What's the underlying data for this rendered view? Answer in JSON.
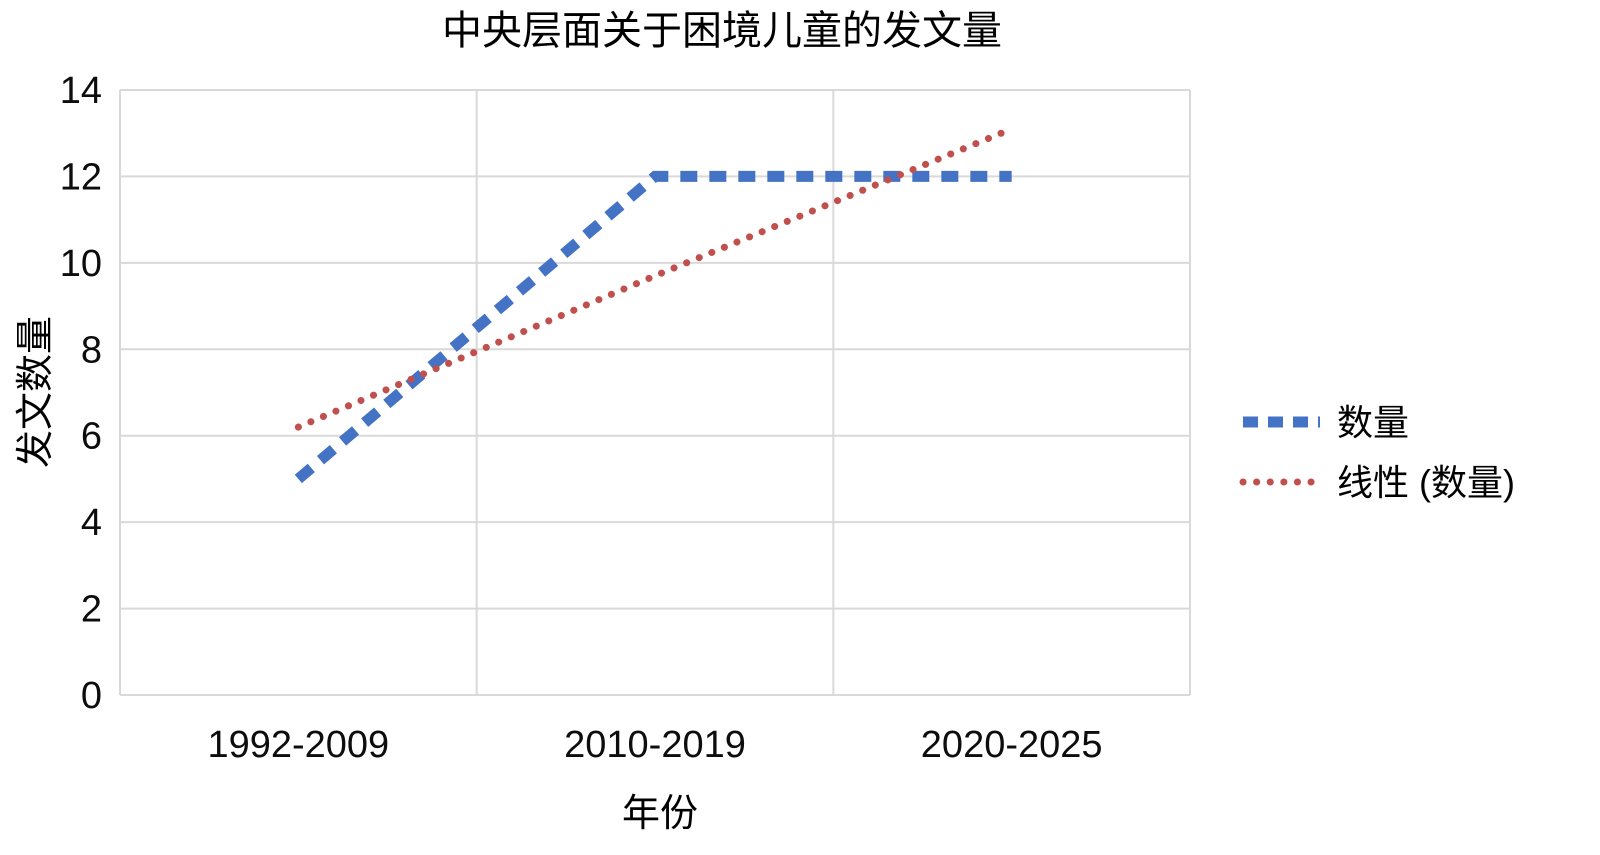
{
  "chart_data": {
    "type": "line",
    "title": "中央层面关于困境儿童的发文量",
    "xlabel": "年份",
    "ylabel": "发文数量",
    "categories": [
      "1992-2009",
      "2010-2019",
      "2020-2025"
    ],
    "series": [
      {
        "name": "数量",
        "values": [
          5,
          12,
          12
        ],
        "color": "#4472c4",
        "line_style": "dashed",
        "is_trendline": false
      },
      {
        "name": "线性 (数量)",
        "values": [
          6.2,
          9.7,
          13.1
        ],
        "color": "#c0504d",
        "line_style": "dotted",
        "is_trendline": true
      }
    ],
    "ylim": [
      0,
      14
    ],
    "ytick_step": 2,
    "yticks": [
      0,
      2,
      4,
      6,
      8,
      10,
      12,
      14
    ],
    "grid": true,
    "grid_color": "#d9d9d9",
    "text_color": "#000000",
    "background_color": "#ffffff",
    "legend_position": "right"
  }
}
